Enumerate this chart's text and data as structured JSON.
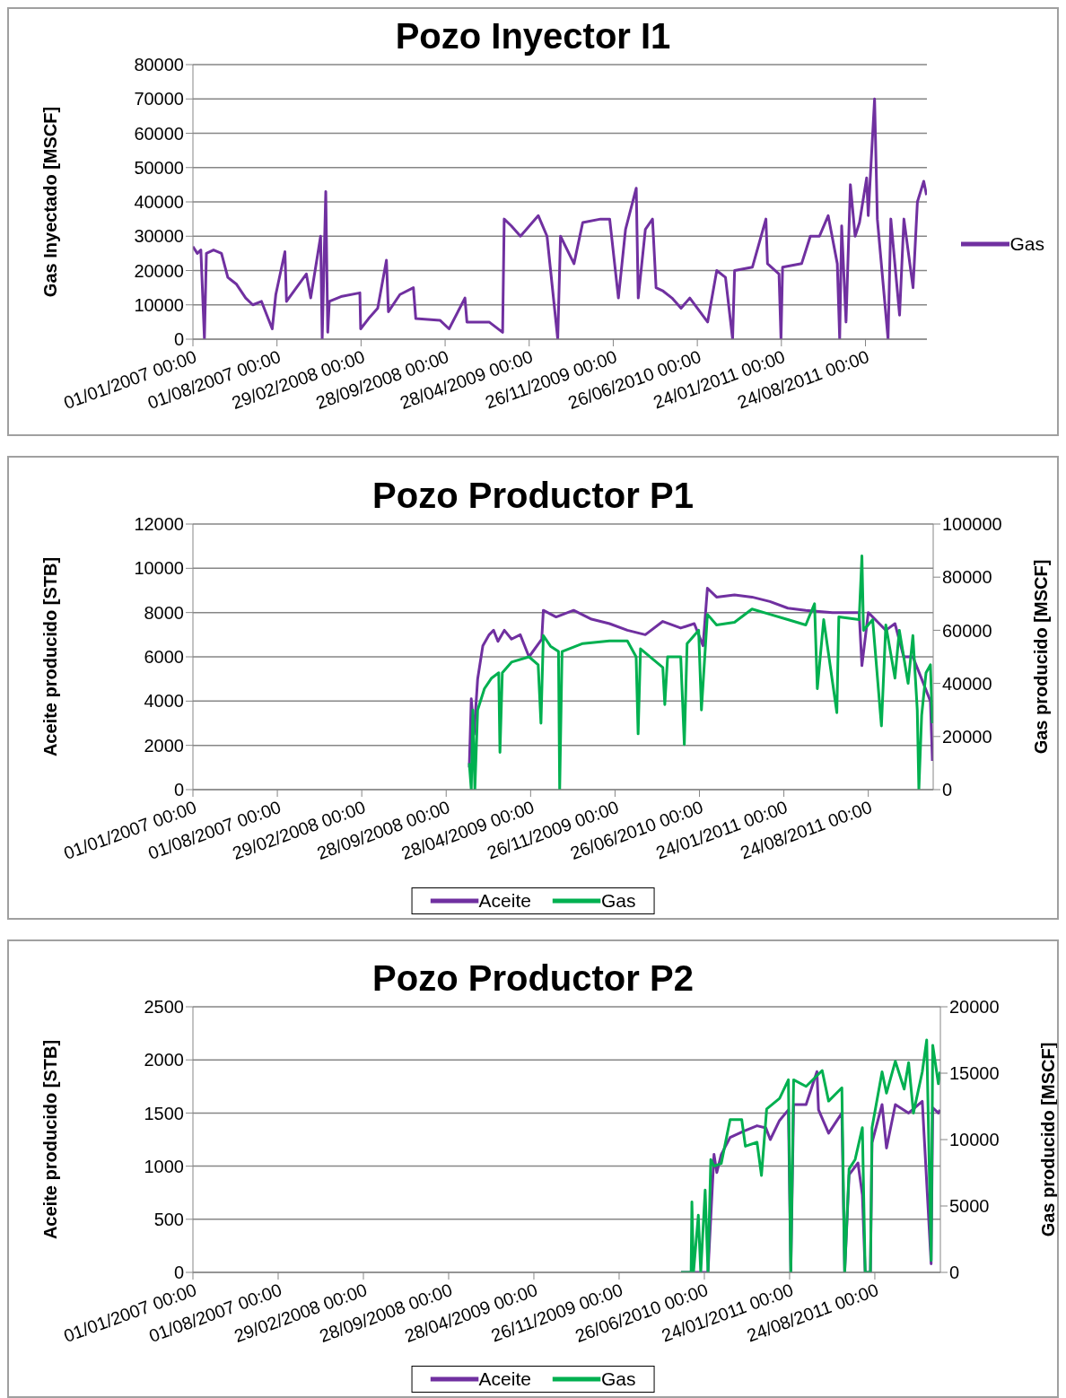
{
  "chart_data": [
    {
      "type": "line",
      "title": "Pozo Inyector I1",
      "ylabel": "Gas Inyectado [MSCF]",
      "xlim": [
        "2007-01-01",
        "2012-01-26"
      ],
      "xticks": [
        {
          "value": "2007-01-01",
          "label": "01/01/2007 00:00"
        },
        {
          "value": "2007-08-01",
          "label": "01/08/2007 00:00"
        },
        {
          "value": "2008-02-29",
          "label": "29/02/2008 00:00"
        },
        {
          "value": "2008-09-28",
          "label": "28/09/2008 00:00"
        },
        {
          "value": "2009-04-28",
          "label": "28/04/2009 00:00"
        },
        {
          "value": "2009-11-26",
          "label": "26/11/2009 00:00"
        },
        {
          "value": "2010-06-26",
          "label": "26/06/2010 00:00"
        },
        {
          "value": "2011-01-24",
          "label": "24/01/2011 00:00"
        },
        {
          "value": "2011-08-24",
          "label": "24/08/2011 00:00"
        }
      ],
      "ylim": [
        0,
        80000
      ],
      "yticks": [
        0,
        10000,
        20000,
        30000,
        40000,
        50000,
        60000,
        70000,
        80000
      ],
      "grid": "y",
      "legend": "right",
      "series": [
        {
          "name": "Gas",
          "color": "#7030a0",
          "x": [
            "2007-01-01",
            "2007-01-12",
            "2007-01-21",
            "2007-01-30",
            "2007-02-04",
            "2007-02-22",
            "2007-03-14",
            "2007-03-30",
            "2007-04-21",
            "2007-05-14",
            "2007-06-01",
            "2007-06-23",
            "2007-07-20",
            "2007-07-29",
            "2007-08-21",
            "2007-08-25",
            "2007-10-14",
            "2007-10-25",
            "2007-11-19",
            "2007-11-23",
            "2007-12-02",
            "2007-12-07",
            "2007-12-11",
            "2008-01-12",
            "2008-02-26",
            "2008-02-28",
            "2008-03-19",
            "2008-04-11",
            "2008-05-03",
            "2008-05-08",
            "2008-06-06",
            "2008-07-10",
            "2008-07-16",
            "2008-09-15",
            "2008-10-08",
            "2008-11-17",
            "2008-11-22",
            "2009-01-17",
            "2009-02-20",
            "2009-02-24",
            "2009-03-14",
            "2009-04-06",
            "2009-05-21",
            "2009-06-12",
            "2009-07-09",
            "2009-07-16",
            "2009-08-19",
            "2009-09-10",
            "2009-10-25",
            "2009-11-17",
            "2009-12-09",
            "2009-12-27",
            "2010-01-23",
            "2010-01-28",
            "2010-02-15",
            "2010-03-05",
            "2010-03-14",
            "2010-04-01",
            "2010-04-23",
            "2010-05-16",
            "2010-06-07",
            "2010-07-22",
            "2010-08-14",
            "2010-09-05",
            "2010-09-23",
            "2010-09-28",
            "2010-11-12",
            "2010-12-16",
            "2010-12-20",
            "2011-01-18",
            "2011-01-23",
            "2011-01-27",
            "2011-03-16",
            "2011-04-07",
            "2011-04-30",
            "2011-05-22",
            "2011-06-14",
            "2011-06-20",
            "2011-06-25",
            "2011-07-06",
            "2011-07-17",
            "2011-07-29",
            "2011-08-09",
            "2011-08-27",
            "2011-08-31",
            "2011-09-16",
            "2011-09-23",
            "2011-10-20",
            "2011-10-27",
            "2011-11-18",
            "2011-11-29",
            "2011-12-22",
            "2012-01-02",
            "2012-01-18",
            "2012-01-25"
          ],
          "values": [
            27000,
            25000,
            26000,
            0,
            25000,
            26000,
            25000,
            18000,
            16000,
            12000,
            10000,
            11000,
            3000,
            13000,
            25500,
            11000,
            19000,
            12000,
            30000,
            0,
            43000,
            2000,
            11000,
            12500,
            13500,
            3000,
            6000,
            9000,
            23000,
            8000,
            13000,
            15000,
            6000,
            5500,
            3000,
            12000,
            5000,
            5000,
            2000,
            35000,
            33000,
            30000,
            36000,
            30000,
            0,
            30000,
            22000,
            34000,
            35000,
            35000,
            12000,
            32000,
            44000,
            12000,
            32000,
            35000,
            15000,
            14000,
            12000,
            9000,
            12000,
            5000,
            20000,
            18000,
            0,
            20000,
            21000,
            35000,
            22000,
            19000,
            0,
            21000,
            22000,
            30000,
            30000,
            36000,
            22000,
            0,
            33000,
            5000,
            45000,
            30000,
            34000,
            47000,
            36000,
            70000,
            35000,
            0,
            35000,
            7000,
            35000,
            15000,
            40000,
            46000,
            42000
          ]
        }
      ]
    },
    {
      "type": "line",
      "title": "Pozo Productor P1",
      "ylabel": "Aceite producido [STB]",
      "y2label": "Gas producido [MSCF]",
      "xlim": [
        "2007-01-01",
        "2012-02-03"
      ],
      "xticks": [
        {
          "value": "2007-01-01",
          "label": "01/01/2007 00:00"
        },
        {
          "value": "2007-08-01",
          "label": "01/08/2007 00:00"
        },
        {
          "value": "2008-02-29",
          "label": "29/02/2008 00:00"
        },
        {
          "value": "2008-09-28",
          "label": "28/09/2008 00:00"
        },
        {
          "value": "2009-04-28",
          "label": "28/04/2009 00:00"
        },
        {
          "value": "2009-11-26",
          "label": "26/11/2009 00:00"
        },
        {
          "value": "2010-06-26",
          "label": "26/06/2010 00:00"
        },
        {
          "value": "2011-01-24",
          "label": "24/01/2011 00:00"
        },
        {
          "value": "2011-08-24",
          "label": "24/08/2011 00:00"
        }
      ],
      "ylim": [
        0,
        12000
      ],
      "yticks": [
        0,
        2000,
        4000,
        6000,
        8000,
        10000,
        12000
      ],
      "y2lim": [
        0,
        100000
      ],
      "y2ticks": [
        0,
        20000,
        40000,
        60000,
        80000,
        100000
      ],
      "grid": "y",
      "legend": "bottom",
      "series": [
        {
          "name": "Aceite",
          "color": "#7030a0",
          "axis": "y",
          "x": [
            "2008-11-25",
            "2008-11-30",
            "2008-12-07",
            "2008-12-16",
            "2008-12-29",
            "2009-01-14",
            "2009-01-25",
            "2009-02-05",
            "2009-02-21",
            "2009-03-11",
            "2009-04-02",
            "2009-04-24",
            "2009-05-26",
            "2009-05-30",
            "2009-07-01",
            "2009-08-14",
            "2009-09-28",
            "2009-11-12",
            "2009-12-27",
            "2010-02-10",
            "2010-03-26",
            "2010-05-10",
            "2010-06-13",
            "2010-07-05",
            "2010-07-16",
            "2010-08-08",
            "2010-09-22",
            "2010-11-05",
            "2010-12-20",
            "2011-02-03",
            "2011-03-20",
            "2011-05-26",
            "2011-08-01",
            "2011-08-08",
            "2011-08-24",
            "2011-09-15",
            "2011-10-07",
            "2011-10-30",
            "2011-11-21",
            "2011-12-14",
            "2012-01-05",
            "2012-01-27",
            "2012-02-01"
          ],
          "values": [
            1000,
            4100,
            2500,
            5000,
            6500,
            7000,
            7200,
            6700,
            7200,
            6800,
            7000,
            6000,
            6800,
            8100,
            7800,
            8100,
            7700,
            7500,
            7200,
            7000,
            7600,
            7300,
            7500,
            6500,
            9100,
            8700,
            8800,
            8700,
            8500,
            8200,
            8100,
            8000,
            8000,
            5600,
            8000,
            7600,
            7200,
            7500,
            6000,
            6000,
            5000,
            4000,
            1300
          ]
        },
        {
          "name": "Gas",
          "color": "#00b050",
          "axis": "y2",
          "x": [
            "2008-11-25",
            "2008-11-30",
            "2008-12-04",
            "2008-12-09",
            "2008-12-16",
            "2009-01-02",
            "2009-01-20",
            "2009-02-07",
            "2009-02-10",
            "2009-02-16",
            "2009-03-11",
            "2009-04-24",
            "2009-05-17",
            "2009-05-24",
            "2009-05-30",
            "2009-06-17",
            "2009-07-07",
            "2009-07-10",
            "2009-07-16",
            "2009-09-06",
            "2009-11-12",
            "2009-12-27",
            "2010-01-18",
            "2010-01-23",
            "2010-01-29",
            "2010-03-26",
            "2010-03-31",
            "2010-04-07",
            "2010-05-10",
            "2010-05-19",
            "2010-05-26",
            "2010-06-24",
            "2010-07-01",
            "2010-07-16",
            "2010-08-08",
            "2010-09-22",
            "2010-11-05",
            "2010-12-20",
            "2011-02-03",
            "2011-03-20",
            "2011-04-11",
            "2011-04-18",
            "2011-05-04",
            "2011-06-06",
            "2011-06-11",
            "2011-08-01",
            "2011-08-08",
            "2011-08-12",
            "2011-09-04",
            "2011-09-26",
            "2011-10-07",
            "2011-10-30",
            "2011-11-10",
            "2011-12-02",
            "2011-12-14",
            "2011-12-25",
            "2011-12-29",
            "2012-01-05",
            "2012-01-16",
            "2012-01-27",
            "2012-02-01"
          ],
          "values": [
            10000,
            0,
            30000,
            0,
            30000,
            38000,
            42000,
            44000,
            14000,
            44000,
            48000,
            50000,
            47000,
            25000,
            58000,
            54000,
            52000,
            0,
            52000,
            55000,
            56000,
            56000,
            50000,
            21000,
            53000,
            46000,
            32000,
            50000,
            50000,
            17000,
            55000,
            60000,
            30000,
            66000,
            62000,
            63000,
            68000,
            66000,
            64000,
            62000,
            70000,
            38000,
            64000,
            29000,
            65000,
            64000,
            88000,
            60000,
            64000,
            24000,
            62000,
            42000,
            60000,
            40000,
            58000,
            30000,
            0,
            28000,
            44000,
            47000,
            25000
          ]
        }
      ]
    },
    {
      "type": "line",
      "title": "Pozo Productor P2",
      "ylabel": "Aceite producido [STB]",
      "y2label": "Gas producido [MSCF]",
      "xlim": [
        "2007-01-01",
        "2012-02-03"
      ],
      "xticks": [
        {
          "value": "2007-01-01",
          "label": "01/01/2007 00:00"
        },
        {
          "value": "2007-08-01",
          "label": "01/08/2007 00:00"
        },
        {
          "value": "2008-02-29",
          "label": "29/02/2008 00:00"
        },
        {
          "value": "2008-09-28",
          "label": "28/09/2008 00:00"
        },
        {
          "value": "2009-04-28",
          "label": "28/04/2009 00:00"
        },
        {
          "value": "2009-11-26",
          "label": "26/11/2009 00:00"
        },
        {
          "value": "2010-06-26",
          "label": "26/06/2010 00:00"
        },
        {
          "value": "2011-01-24",
          "label": "24/01/2011 00:00"
        },
        {
          "value": "2011-08-24",
          "label": "24/08/2011 00:00"
        }
      ],
      "ylim": [
        0,
        2500
      ],
      "yticks": [
        0,
        500,
        1000,
        1500,
        2000,
        2500
      ],
      "y2lim": [
        0,
        20000
      ],
      "y2ticks": [
        0,
        5000,
        10000,
        15000,
        20000
      ],
      "grid": "y",
      "legend": "bottom",
      "series": [
        {
          "name": "Aceite",
          "color": "#7030a0",
          "axis": "y",
          "x": [
            "2010-04-29",
            "2010-07-05",
            "2010-07-20",
            "2010-07-27",
            "2010-08-07",
            "2010-08-29",
            "2010-10-02",
            "2010-11-04",
            "2010-11-26",
            "2010-12-07",
            "2010-12-30",
            "2011-01-21",
            "2011-01-27",
            "2011-02-03",
            "2011-03-06",
            "2011-04-02",
            "2011-04-06",
            "2011-05-01",
            "2011-06-03",
            "2011-06-10",
            "2011-06-21",
            "2011-07-13",
            "2011-07-24",
            "2011-07-31",
            "2011-08-13",
            "2011-08-17",
            "2011-09-11",
            "2011-09-22",
            "2011-10-14",
            "2011-11-16",
            "2011-12-20",
            "2012-01-11",
            "2012-01-15",
            "2012-01-29",
            "2012-02-02"
          ],
          "values": [
            0,
            0,
            1110,
            940,
            1110,
            1270,
            1330,
            1380,
            1360,
            1250,
            1430,
            1530,
            0,
            1580,
            1580,
            1890,
            1530,
            1310,
            1500,
            0,
            920,
            1030,
            730,
            0,
            0,
            1220,
            1580,
            1170,
            1580,
            1500,
            1610,
            80,
            1550,
            1500,
            1530
          ]
        },
        {
          "name": "Gas",
          "color": "#00b050",
          "axis": "y2",
          "x": [
            "2010-04-29",
            "2010-05-24",
            "2010-05-26",
            "2010-05-30",
            "2010-06-11",
            "2010-06-17",
            "2010-06-28",
            "2010-07-05",
            "2010-07-12",
            "2010-07-20",
            "2010-08-07",
            "2010-08-29",
            "2010-09-27",
            "2010-10-06",
            "2010-11-04",
            "2010-11-15",
            "2010-11-28",
            "2010-12-30",
            "2011-01-21",
            "2011-01-27",
            "2011-02-03",
            "2011-03-06",
            "2011-04-15",
            "2011-05-01",
            "2011-06-03",
            "2011-06-10",
            "2011-06-21",
            "2011-07-06",
            "2011-07-24",
            "2011-07-31",
            "2011-08-13",
            "2011-08-17",
            "2011-09-11",
            "2011-09-22",
            "2011-10-14",
            "2011-11-05",
            "2011-11-16",
            "2011-11-28",
            "2011-12-20",
            "2011-12-31",
            "2012-01-11",
            "2012-01-15",
            "2012-01-29",
            "2012-02-02"
          ],
          "values": [
            0,
            0,
            5300,
            0,
            4300,
            0,
            6200,
            0,
            8500,
            8000,
            8200,
            11500,
            11500,
            9500,
            9800,
            7300,
            12300,
            13100,
            14500,
            0,
            14500,
            14000,
            15200,
            12900,
            13900,
            0,
            7800,
            8500,
            10900,
            0,
            0,
            10900,
            15100,
            13500,
            15900,
            13800,
            15800,
            12000,
            15100,
            17500,
            900,
            17100,
            14200,
            15100
          ]
        }
      ]
    }
  ]
}
